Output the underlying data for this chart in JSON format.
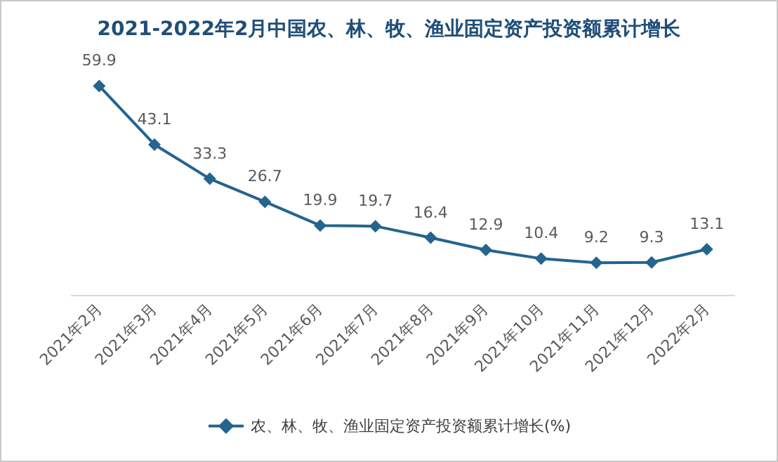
{
  "chart_data": {
    "type": "line",
    "title": "2021-2022年2月中国农、林、牧、渔业固定资产投资额累计增长",
    "categories": [
      "2021年2月",
      "2021年3月",
      "2021年4月",
      "2021年5月",
      "2021年6月",
      "2021年7月",
      "2021年8月",
      "2021年9月",
      "2021年10月",
      "2021年11月",
      "2021年12月",
      "2022年2月"
    ],
    "series": [
      {
        "name": "农、林、牧、渔业固定资产投资额累计增长(%)",
        "color": "#24648f",
        "values": [
          59.9,
          43.1,
          33.3,
          26.7,
          19.9,
          19.7,
          16.4,
          12.9,
          10.4,
          9.2,
          9.3,
          13.1
        ]
      }
    ],
    "data_labels": true,
    "marker": "diamond",
    "legend": "bottom",
    "grid": false
  }
}
